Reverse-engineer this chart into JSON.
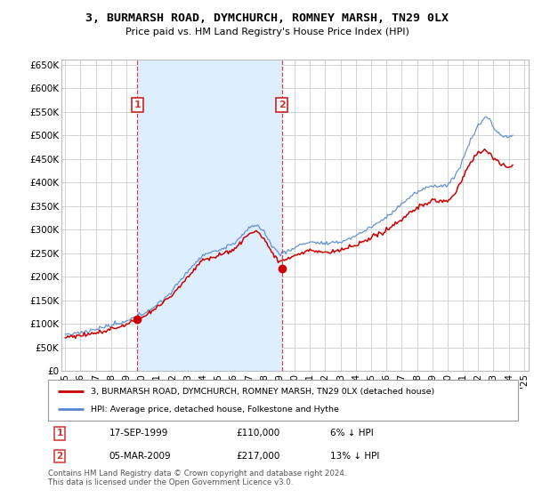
{
  "title": "3, BURMARSH ROAD, DYMCHURCH, ROMNEY MARSH, TN29 0LX",
  "subtitle": "Price paid vs. HM Land Registry's House Price Index (HPI)",
  "ylim": [
    0,
    660000
  ],
  "yticks": [
    0,
    50000,
    100000,
    150000,
    200000,
    250000,
    300000,
    350000,
    400000,
    450000,
    500000,
    550000,
    600000,
    650000
  ],
  "ytick_labels": [
    "£0",
    "£50K",
    "£100K",
    "£150K",
    "£200K",
    "£250K",
    "£300K",
    "£350K",
    "£400K",
    "£450K",
    "£500K",
    "£550K",
    "£600K",
    "£650K"
  ],
  "hpi_color": "#5588cc",
  "price_color": "#cc0000",
  "annotation_box_color": "#cc3333",
  "shade_color": "#ddeeff",
  "grid_color": "#cccccc",
  "background_color": "#ffffff",
  "legend_line1": "3, BURMARSH ROAD, DYMCHURCH, ROMNEY MARSH, TN29 0LX (detached house)",
  "legend_line2": "HPI: Average price, detached house, Folkestone and Hythe",
  "footnote": "Contains HM Land Registry data © Crown copyright and database right 2024.\nThis data is licensed under the Open Government Licence v3.0.",
  "annotation1_date": "17-SEP-1999",
  "annotation1_price": "£110,000",
  "annotation1_hpi": "6% ↓ HPI",
  "annotation2_date": "05-MAR-2009",
  "annotation2_price": "£217,000",
  "annotation2_hpi": "13% ↓ HPI",
  "sale1_x": 1999.72,
  "sale1_y": 110000,
  "sale2_x": 2009.17,
  "sale2_y": 217000,
  "xtick_years": [
    1995,
    1996,
    1997,
    1998,
    1999,
    2000,
    2001,
    2002,
    2003,
    2004,
    2005,
    2006,
    2007,
    2008,
    2009,
    2010,
    2011,
    2012,
    2013,
    2014,
    2015,
    2016,
    2017,
    2018,
    2019,
    2020,
    2021,
    2022,
    2023,
    2024,
    2025
  ]
}
